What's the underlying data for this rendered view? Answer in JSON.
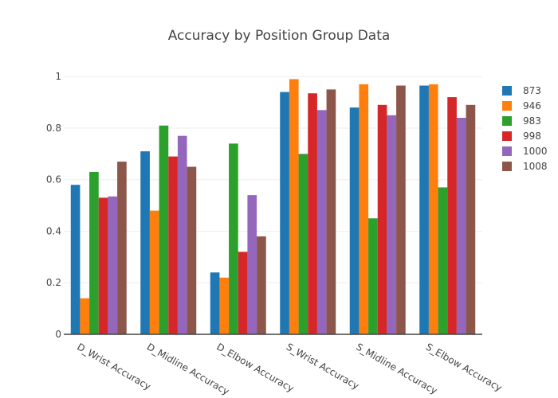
{
  "chart_data": {
    "type": "bar",
    "title": "Accuracy by Position Group Data",
    "xlabel": "",
    "ylabel": "",
    "ylim": [
      0,
      1.05
    ],
    "yticks": [
      0,
      0.2,
      0.4,
      0.6,
      0.8,
      1
    ],
    "ytick_labels": [
      "0",
      "0.2",
      "0.4",
      "0.6",
      "0.8",
      "1"
    ],
    "grid": true,
    "legend_position": "right",
    "categories": [
      "D_Wrist Accuracy",
      "D_Midline Accuracy",
      "D_Elbow Accuracy",
      "S_Wrist Accuracy",
      "S_Midline Accuracy",
      "S_Elbow Accuracy"
    ],
    "series": [
      {
        "name": "873",
        "color": "#1f77b4",
        "values": [
          0.58,
          0.71,
          0.24,
          0.94,
          0.88,
          0.965
        ]
      },
      {
        "name": "946",
        "color": "#ff7f0e",
        "values": [
          0.14,
          0.48,
          0.22,
          0.99,
          0.97,
          0.97
        ]
      },
      {
        "name": "983",
        "color": "#2ca02c",
        "values": [
          0.63,
          0.81,
          0.74,
          0.7,
          0.45,
          0.57
        ]
      },
      {
        "name": "998",
        "color": "#d62728",
        "values": [
          0.53,
          0.69,
          0.32,
          0.935,
          0.89,
          0.92
        ]
      },
      {
        "name": "1000",
        "color": "#9467bd",
        "values": [
          0.535,
          0.77,
          0.54,
          0.87,
          0.85,
          0.84
        ]
      },
      {
        "name": "1008",
        "color": "#8c564b",
        "values": [
          0.67,
          0.65,
          0.38,
          0.95,
          0.965,
          0.89
        ]
      }
    ]
  }
}
